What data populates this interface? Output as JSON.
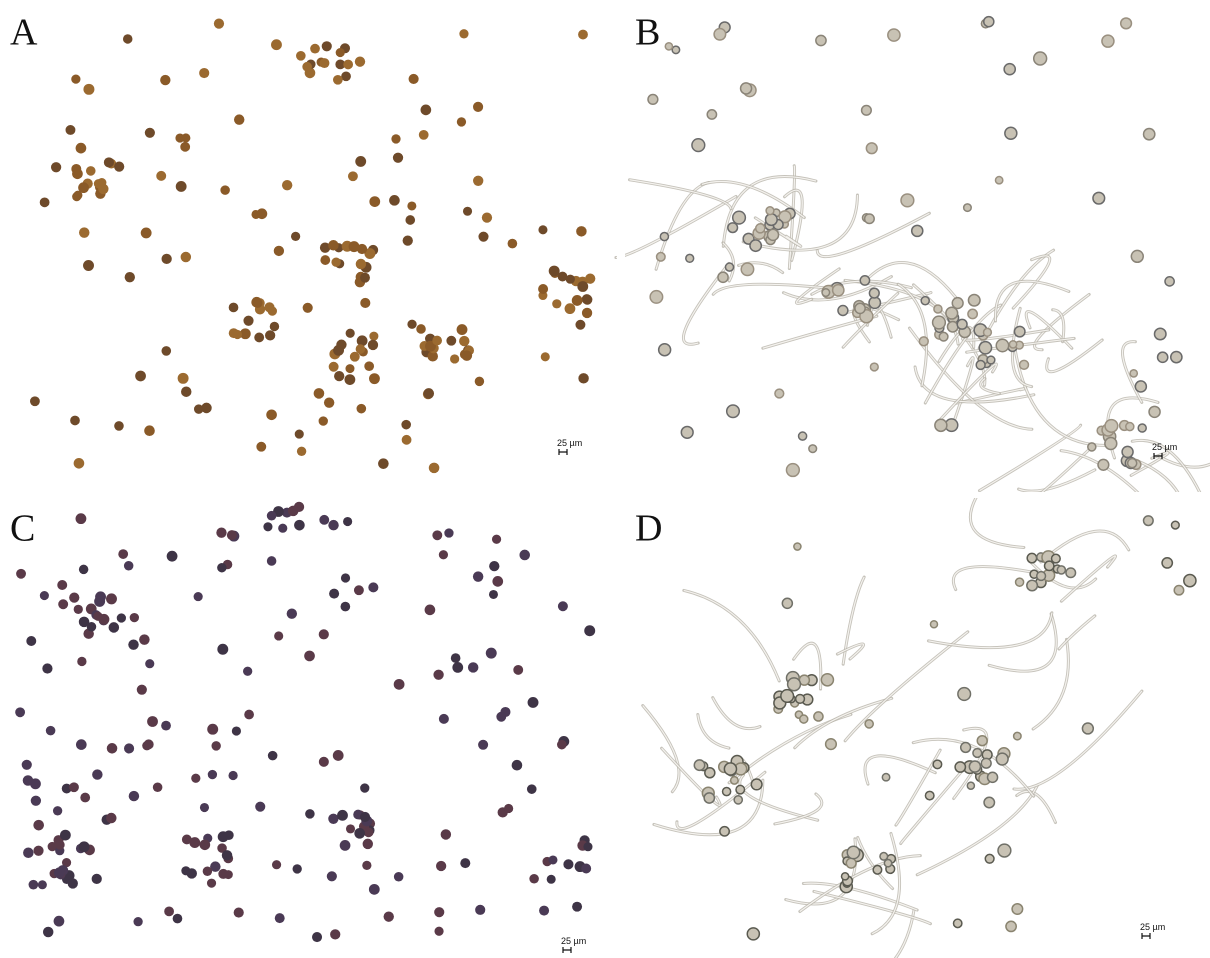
{
  "panels": [
    {
      "label": "A",
      "scale_bar": "25 µm"
    },
    {
      "label": "B",
      "scale_bar": "25 µm"
    },
    {
      "label": "C",
      "scale_bar": "25 µm"
    },
    {
      "label": "D",
      "scale_bar": "25 µm"
    }
  ]
}
